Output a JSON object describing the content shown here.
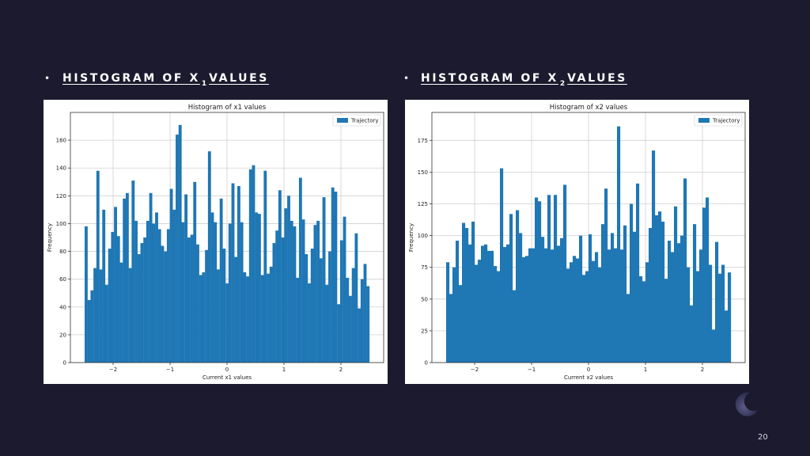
{
  "slide": {
    "bullet": "•",
    "left_heading": {
      "pre": "HISTOGRAM OF X",
      "sub": "1",
      "post": "VALUES"
    },
    "right_heading": {
      "pre": "HISTOGRAM OF X",
      "sub": "2",
      "post": "VALUES"
    },
    "page_number": "20",
    "decoration_icon": "crescent-moon-icon"
  },
  "colors": {
    "background": "#1b1a2e",
    "bar": "#1f77b4",
    "grid": "#d0d0d0"
  },
  "chart_data": [
    {
      "type": "bar",
      "title": "Histogram of x1 values",
      "xlabel": "Current x1 values",
      "ylabel": "Frequency",
      "legend": [
        "Trajectory"
      ],
      "legend_position": "top-right",
      "grid": true,
      "xlim": [
        -2.75,
        2.75
      ],
      "ylim": [
        0,
        180
      ],
      "xticks": [
        -2,
        -1,
        0,
        1,
        2
      ],
      "xtick_labels": [
        "−2",
        "−1",
        "0",
        "1",
        "2"
      ],
      "yticks": [
        0,
        20,
        40,
        60,
        80,
        100,
        120,
        140,
        160
      ],
      "bin_range": [
        -2.5,
        2.5
      ],
      "series": [
        {
          "name": "Trajectory",
          "values": [
            98,
            45,
            52,
            68,
            138,
            67,
            110,
            56,
            82,
            94,
            112,
            91,
            72,
            118,
            122,
            68,
            131,
            102,
            78,
            86,
            90,
            102,
            122,
            100,
            108,
            96,
            84,
            80,
            96,
            125,
            110,
            164,
            171,
            101,
            121,
            90,
            92,
            130,
            85,
            63,
            65,
            81,
            152,
            108,
            101,
            67,
            118,
            82,
            57,
            100,
            129,
            76,
            127,
            101,
            65,
            62,
            139,
            142,
            108,
            107,
            63,
            138,
            64,
            69,
            86,
            95,
            124,
            90,
            111,
            120,
            102,
            98,
            61,
            133,
            103,
            78,
            57,
            82,
            99,
            102,
            75,
            119,
            56,
            80,
            126,
            123,
            42,
            88,
            105,
            61,
            48,
            68,
            93,
            39,
            60,
            71,
            55
          ]
        }
      ]
    },
    {
      "type": "bar",
      "title": "Histogram of x2 values",
      "xlabel": "Current x2 values",
      "ylabel": "Frequency",
      "legend": [
        "Trajectory"
      ],
      "legend_position": "top-right",
      "grid": true,
      "xlim": [
        -2.75,
        2.75
      ],
      "ylim": [
        0,
        197
      ],
      "xticks": [
        -2,
        -1,
        0,
        1,
        2
      ],
      "xtick_labels": [
        "−2",
        "−1",
        "0",
        "1",
        "2"
      ],
      "yticks": [
        0,
        25,
        50,
        75,
        100,
        125,
        150,
        175
      ],
      "bin_range": [
        -2.5,
        2.5
      ],
      "series": [
        {
          "name": "Trajectory",
          "values": [
            79,
            54,
            75,
            96,
            61,
            110,
            106,
            93,
            111,
            77,
            81,
            92,
            93,
            88,
            88,
            76,
            72,
            153,
            91,
            93,
            117,
            57,
            120,
            102,
            83,
            84,
            90,
            90,
            130,
            127,
            99,
            90,
            132,
            89,
            132,
            92,
            98,
            140,
            74,
            79,
            84,
            82,
            100,
            69,
            72,
            101,
            80,
            87,
            75,
            109,
            137,
            89,
            102,
            90,
            186,
            89,
            108,
            54,
            125,
            103,
            141,
            68,
            64,
            79,
            106,
            167,
            116,
            119,
            111,
            66,
            96,
            87,
            123,
            94,
            100,
            145,
            75,
            45,
            109,
            72,
            89,
            122,
            130,
            77,
            26,
            95,
            70,
            77,
            41,
            71
          ]
        }
      ]
    }
  ]
}
